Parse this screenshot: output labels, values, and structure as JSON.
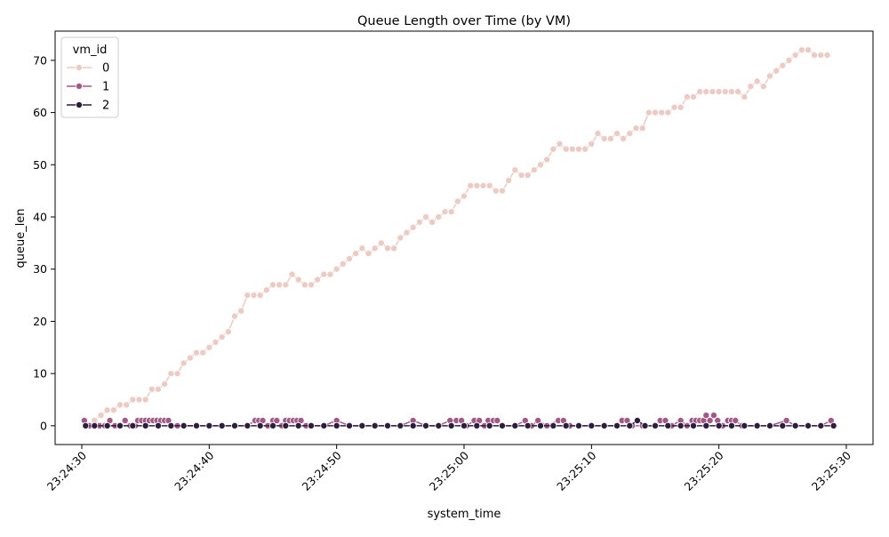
{
  "chart_data": {
    "type": "line",
    "title": "Queue Length over Time (by VM)",
    "xlabel": "system_time",
    "ylabel": "queue_len",
    "legend_title": "vm_id",
    "legend_position": "top-left",
    "grid": false,
    "x_range": [
      "23:24:30",
      "23:25:30"
    ],
    "ylim": [
      -3.6,
      75.6
    ],
    "x_ticks": [
      "23:24:30",
      "23:24:40",
      "23:24:50",
      "23:25:00",
      "23:25:10",
      "23:25:20",
      "23:25:30"
    ],
    "y_ticks": [
      0,
      10,
      20,
      30,
      40,
      50,
      60,
      70
    ],
    "series": [
      {
        "name": "0",
        "color": "#ebcbc4",
        "points": [
          [
            "23:24:30.5",
            0
          ],
          [
            "23:24:31.0",
            1
          ],
          [
            "23:24:31.5",
            2
          ],
          [
            "23:24:32.0",
            3
          ],
          [
            "23:24:32.5",
            3
          ],
          [
            "23:24:33.0",
            4
          ],
          [
            "23:24:33.5",
            4
          ],
          [
            "23:24:34.0",
            5
          ],
          [
            "23:24:34.5",
            5
          ],
          [
            "23:24:35.0",
            5
          ],
          [
            "23:24:35.5",
            7
          ],
          [
            "23:24:36.0",
            7
          ],
          [
            "23:24:36.5",
            8
          ],
          [
            "23:24:37.0",
            10
          ],
          [
            "23:24:37.5",
            10
          ],
          [
            "23:24:38.0",
            12
          ],
          [
            "23:24:38.5",
            13
          ],
          [
            "23:24:39.0",
            14
          ],
          [
            "23:24:39.5",
            14
          ],
          [
            "23:24:40.0",
            15
          ],
          [
            "23:24:40.5",
            16
          ],
          [
            "23:24:41.0",
            17
          ],
          [
            "23:24:41.5",
            18
          ],
          [
            "23:24:42.0",
            21
          ],
          [
            "23:24:42.5",
            22
          ],
          [
            "23:24:43.0",
            25
          ],
          [
            "23:24:43.5",
            25
          ],
          [
            "23:24:44.0",
            25
          ],
          [
            "23:24:44.5",
            26
          ],
          [
            "23:24:45.0",
            27
          ],
          [
            "23:24:45.5",
            27
          ],
          [
            "23:24:46.0",
            27
          ],
          [
            "23:24:46.5",
            29
          ],
          [
            "23:24:47.0",
            28
          ],
          [
            "23:24:47.5",
            27
          ],
          [
            "23:24:48.0",
            27
          ],
          [
            "23:24:48.5",
            28
          ],
          [
            "23:24:49.0",
            29
          ],
          [
            "23:24:49.5",
            29
          ],
          [
            "23:24:50.0",
            30
          ],
          [
            "23:24:50.5",
            31
          ],
          [
            "23:24:51.0",
            32
          ],
          [
            "23:24:51.5",
            33
          ],
          [
            "23:24:52.0",
            34
          ],
          [
            "23:24:52.5",
            33
          ],
          [
            "23:24:53.0",
            34
          ],
          [
            "23:24:53.5",
            35
          ],
          [
            "23:24:54.0",
            34
          ],
          [
            "23:24:54.5",
            34
          ],
          [
            "23:24:55.0",
            36
          ],
          [
            "23:24:55.5",
            37
          ],
          [
            "23:24:56.0",
            38
          ],
          [
            "23:24:56.5",
            39
          ],
          [
            "23:24:57.0",
            40
          ],
          [
            "23:24:57.5",
            39
          ],
          [
            "23:24:58.0",
            40
          ],
          [
            "23:24:58.5",
            41
          ],
          [
            "23:24:59.0",
            41
          ],
          [
            "23:24:59.5",
            43
          ],
          [
            "23:25:00.0",
            44
          ],
          [
            "23:25:00.5",
            46
          ],
          [
            "23:25:01.0",
            46
          ],
          [
            "23:25:01.5",
            46
          ],
          [
            "23:25:02.0",
            46
          ],
          [
            "23:25:02.5",
            45
          ],
          [
            "23:25:03.0",
            45
          ],
          [
            "23:25:03.5",
            47
          ],
          [
            "23:25:04.0",
            49
          ],
          [
            "23:25:04.5",
            48
          ],
          [
            "23:25:05.0",
            48
          ],
          [
            "23:25:05.5",
            49
          ],
          [
            "23:25:06.0",
            50
          ],
          [
            "23:25:06.5",
            51
          ],
          [
            "23:25:07.0",
            53
          ],
          [
            "23:25:07.5",
            54
          ],
          [
            "23:25:08.0",
            53
          ],
          [
            "23:25:08.5",
            53
          ],
          [
            "23:25:09.0",
            53
          ],
          [
            "23:25:09.5",
            53
          ],
          [
            "23:25:10.0",
            54
          ],
          [
            "23:25:10.5",
            56
          ],
          [
            "23:25:11.0",
            55
          ],
          [
            "23:25:11.5",
            55
          ],
          [
            "23:25:12.0",
            56
          ],
          [
            "23:25:12.5",
            55
          ],
          [
            "23:25:13.0",
            56
          ],
          [
            "23:25:13.5",
            57
          ],
          [
            "23:25:14.0",
            57
          ],
          [
            "23:25:14.5",
            60
          ],
          [
            "23:25:15.0",
            60
          ],
          [
            "23:25:15.5",
            60
          ],
          [
            "23:25:16.0",
            60
          ],
          [
            "23:25:16.5",
            61
          ],
          [
            "23:25:17.0",
            61
          ],
          [
            "23:25:17.5",
            63
          ],
          [
            "23:25:18.0",
            63
          ],
          [
            "23:25:18.5",
            64
          ],
          [
            "23:25:19.0",
            64
          ],
          [
            "23:25:19.5",
            64
          ],
          [
            "23:25:20.0",
            64
          ],
          [
            "23:25:20.5",
            64
          ],
          [
            "23:25:21.0",
            64
          ],
          [
            "23:25:21.5",
            64
          ],
          [
            "23:25:22.0",
            63
          ],
          [
            "23:25:22.5",
            65
          ],
          [
            "23:25:23.0",
            66
          ],
          [
            "23:25:23.5",
            65
          ],
          [
            "23:25:24.0",
            67
          ],
          [
            "23:25:24.5",
            68
          ],
          [
            "23:25:25.0",
            69
          ],
          [
            "23:25:25.5",
            70
          ],
          [
            "23:25:26.0",
            71
          ],
          [
            "23:25:26.5",
            72
          ],
          [
            "23:25:27.0",
            72
          ],
          [
            "23:25:27.5",
            71
          ],
          [
            "23:25:28.0",
            71
          ],
          [
            "23:25:28.5",
            71
          ]
        ]
      },
      {
        "name": "1",
        "color": "#a15987",
        "points": [
          [
            "23:24:30.2",
            1
          ],
          [
            "23:24:30.6",
            0
          ],
          [
            "23:24:31.0",
            0
          ],
          [
            "23:24:31.4",
            0
          ],
          [
            "23:24:31.8",
            0
          ],
          [
            "23:24:32.2",
            1
          ],
          [
            "23:24:32.6",
            0
          ],
          [
            "23:24:33.0",
            0
          ],
          [
            "23:24:33.4",
            1
          ],
          [
            "23:24:33.8",
            0
          ],
          [
            "23:24:34.2",
            0
          ],
          [
            "23:24:34.4",
            1
          ],
          [
            "23:24:34.7",
            1
          ],
          [
            "23:24:35.0",
            1
          ],
          [
            "23:24:35.3",
            1
          ],
          [
            "23:24:35.6",
            1
          ],
          [
            "23:24:35.9",
            1
          ],
          [
            "23:24:36.2",
            1
          ],
          [
            "23:24:36.5",
            1
          ],
          [
            "23:24:36.8",
            1
          ],
          [
            "23:24:37.1",
            0
          ],
          [
            "23:24:37.5",
            0
          ],
          [
            "23:24:38.0",
            0
          ],
          [
            "23:24:39.0",
            0
          ],
          [
            "23:24:40.0",
            0
          ],
          [
            "23:24:41.0",
            0
          ],
          [
            "23:24:42.0",
            0
          ],
          [
            "23:24:43.0",
            0
          ],
          [
            "23:24:43.6",
            1
          ],
          [
            "23:24:43.9",
            1
          ],
          [
            "23:24:44.2",
            1
          ],
          [
            "23:24:44.6",
            0
          ],
          [
            "23:24:45.0",
            1
          ],
          [
            "23:24:45.3",
            1
          ],
          [
            "23:24:45.7",
            0
          ],
          [
            "23:24:46.0",
            1
          ],
          [
            "23:24:46.3",
            1
          ],
          [
            "23:24:46.6",
            1
          ],
          [
            "23:24:46.9",
            1
          ],
          [
            "23:24:47.2",
            1
          ],
          [
            "23:24:47.6",
            0
          ],
          [
            "23:24:48.0",
            0
          ],
          [
            "23:24:49.0",
            0
          ],
          [
            "23:24:50.0",
            1
          ],
          [
            "23:24:51.0",
            0
          ],
          [
            "23:24:52.0",
            0
          ],
          [
            "23:24:53.0",
            0
          ],
          [
            "23:24:54.0",
            0
          ],
          [
            "23:24:55.0",
            0
          ],
          [
            "23:24:56.0",
            1
          ],
          [
            "23:24:57.0",
            0
          ],
          [
            "23:24:58.0",
            0
          ],
          [
            "23:24:58.9",
            1
          ],
          [
            "23:24:59.4",
            1
          ],
          [
            "23:24:59.8",
            1
          ],
          [
            "23:25:00.2",
            0
          ],
          [
            "23:25:00.8",
            1
          ],
          [
            "23:25:01.2",
            1
          ],
          [
            "23:25:01.6",
            0
          ],
          [
            "23:25:01.9",
            1
          ],
          [
            "23:25:02.3",
            1
          ],
          [
            "23:25:02.6",
            1
          ],
          [
            "23:25:03.0",
            0
          ],
          [
            "23:25:04.0",
            0
          ],
          [
            "23:25:04.8",
            1
          ],
          [
            "23:25:05.3",
            0
          ],
          [
            "23:25:05.8",
            1
          ],
          [
            "23:25:06.5",
            0
          ],
          [
            "23:25:07.4",
            1
          ],
          [
            "23:25:07.8",
            1
          ],
          [
            "23:25:08.3",
            0
          ],
          [
            "23:25:09.0",
            0
          ],
          [
            "23:25:10.0",
            0
          ],
          [
            "23:25:11.0",
            0
          ],
          [
            "23:25:12.0",
            0
          ],
          [
            "23:25:12.4",
            1
          ],
          [
            "23:25:12.8",
            1
          ],
          [
            "23:25:13.2",
            0
          ],
          [
            "23:25:14.0",
            0
          ],
          [
            "23:25:15.0",
            0
          ],
          [
            "23:25:15.4",
            1
          ],
          [
            "23:25:15.8",
            1
          ],
          [
            "23:25:16.3",
            0
          ],
          [
            "23:25:17.0",
            1
          ],
          [
            "23:25:17.5",
            0
          ],
          [
            "23:25:17.9",
            1
          ],
          [
            "23:25:18.2",
            1
          ],
          [
            "23:25:18.5",
            1
          ],
          [
            "23:25:18.8",
            1
          ],
          [
            "23:25:19.0",
            2
          ],
          [
            "23:25:19.3",
            1
          ],
          [
            "23:25:19.6",
            2
          ],
          [
            "23:25:19.9",
            1
          ],
          [
            "23:25:20.3",
            0
          ],
          [
            "23:25:20.7",
            1
          ],
          [
            "23:25:21.0",
            1
          ],
          [
            "23:25:21.3",
            1
          ],
          [
            "23:25:21.8",
            0
          ],
          [
            "23:25:23.0",
            0
          ],
          [
            "23:25:24.0",
            0
          ],
          [
            "23:25:25.3",
            1
          ],
          [
            "23:25:26.0",
            0
          ],
          [
            "23:25:27.0",
            0
          ],
          [
            "23:25:28.0",
            0
          ],
          [
            "23:25:28.8",
            1
          ]
        ]
      },
      {
        "name": "2",
        "color": "#2d1e3e",
        "points": [
          [
            "23:24:30.3",
            0
          ],
          [
            "23:24:31.0",
            0
          ],
          [
            "23:24:32.0",
            0
          ],
          [
            "23:24:33.0",
            0
          ],
          [
            "23:24:34.0",
            0
          ],
          [
            "23:24:35.0",
            0
          ],
          [
            "23:24:36.0",
            0
          ],
          [
            "23:24:37.0",
            0
          ],
          [
            "23:24:38.0",
            0
          ],
          [
            "23:24:39.0",
            0
          ],
          [
            "23:24:40.0",
            0
          ],
          [
            "23:24:41.0",
            0
          ],
          [
            "23:24:42.0",
            0
          ],
          [
            "23:24:43.0",
            0
          ],
          [
            "23:24:44.0",
            0
          ],
          [
            "23:24:45.0",
            0
          ],
          [
            "23:24:46.0",
            0
          ],
          [
            "23:24:47.0",
            0
          ],
          [
            "23:24:48.0",
            0
          ],
          [
            "23:24:49.0",
            0
          ],
          [
            "23:24:50.0",
            0
          ],
          [
            "23:24:51.0",
            0
          ],
          [
            "23:24:52.0",
            0
          ],
          [
            "23:24:53.0",
            0
          ],
          [
            "23:24:54.0",
            0
          ],
          [
            "23:24:55.0",
            0
          ],
          [
            "23:24:56.0",
            0
          ],
          [
            "23:24:57.0",
            0
          ],
          [
            "23:24:58.0",
            0
          ],
          [
            "23:24:59.0",
            0
          ],
          [
            "23:25:00.0",
            0
          ],
          [
            "23:25:01.0",
            0
          ],
          [
            "23:25:02.0",
            0
          ],
          [
            "23:25:03.0",
            0
          ],
          [
            "23:25:04.0",
            0
          ],
          [
            "23:25:05.0",
            0
          ],
          [
            "23:25:06.0",
            0
          ],
          [
            "23:25:07.0",
            0
          ],
          [
            "23:25:08.0",
            0
          ],
          [
            "23:25:09.0",
            0
          ],
          [
            "23:25:10.0",
            0
          ],
          [
            "23:25:11.0",
            0
          ],
          [
            "23:25:12.0",
            0
          ],
          [
            "23:25:13.0",
            0
          ],
          [
            "23:25:13.6",
            1
          ],
          [
            "23:25:14.2",
            0
          ],
          [
            "23:25:15.0",
            0
          ],
          [
            "23:25:16.0",
            0
          ],
          [
            "23:25:17.0",
            0
          ],
          [
            "23:25:18.0",
            0
          ],
          [
            "23:25:19.0",
            0
          ],
          [
            "23:25:20.0",
            0
          ],
          [
            "23:25:21.0",
            0
          ],
          [
            "23:25:22.0",
            0
          ],
          [
            "23:25:23.0",
            0
          ],
          [
            "23:25:24.0",
            0
          ],
          [
            "23:25:25.0",
            0
          ],
          [
            "23:25:26.0",
            0
          ],
          [
            "23:25:27.0",
            0
          ],
          [
            "23:25:28.0",
            0
          ],
          [
            "23:25:29.0",
            0
          ]
        ]
      }
    ]
  }
}
